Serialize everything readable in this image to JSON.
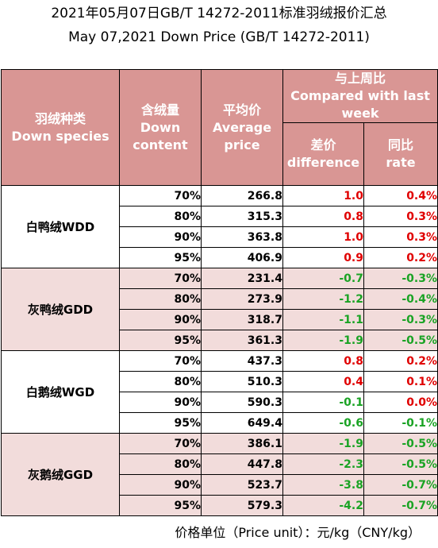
{
  "title": {
    "line1": "2021年05月07日GB/T 14272-2011标准羽绒报价汇总",
    "line2": "May 07,2021 Down Price (GB/T 14272-2011)"
  },
  "header": {
    "species_cn": "羽绒种类",
    "species_en": "Down species",
    "content_cn": "含绒量",
    "content_en": "Down content",
    "avg_cn": "平均价",
    "avg_en": "Average price",
    "compared_cn": "与上周比",
    "compared_en": "Compared with last week",
    "diff_cn": "差价",
    "diff_en": "difference",
    "rate_cn": "同比",
    "rate_en": "rate"
  },
  "groups": [
    {
      "name": "白鸭绒WDD",
      "rows": [
        {
          "content": "70%",
          "avg": "266.8",
          "diff": "1.0",
          "rate": "0.4%"
        },
        {
          "content": "80%",
          "avg": "315.3",
          "diff": "0.8",
          "rate": "0.3%"
        },
        {
          "content": "90%",
          "avg": "363.8",
          "diff": "1.0",
          "rate": "0.3%"
        },
        {
          "content": "95%",
          "avg": "406.9",
          "diff": "0.9",
          "rate": "0.2%"
        }
      ]
    },
    {
      "name": "灰鸭绒GDD",
      "rows": [
        {
          "content": "70%",
          "avg": "231.4",
          "diff": "-0.7",
          "rate": "-0.3%"
        },
        {
          "content": "80%",
          "avg": "273.9",
          "diff": "-1.2",
          "rate": "-0.4%"
        },
        {
          "content": "90%",
          "avg": "318.7",
          "diff": "-1.1",
          "rate": "-0.3%"
        },
        {
          "content": "95%",
          "avg": "361.3",
          "diff": "-1.9",
          "rate": "-0.5%"
        }
      ]
    },
    {
      "name": "白鹅绒WGD",
      "rows": [
        {
          "content": "70%",
          "avg": "437.3",
          "diff": "0.8",
          "rate": "0.2%"
        },
        {
          "content": "80%",
          "avg": "510.3",
          "diff": "0.4",
          "rate": "0.1%"
        },
        {
          "content": "90%",
          "avg": "590.3",
          "diff": "-0.1",
          "rate": "0.0%"
        },
        {
          "content": "95%",
          "avg": "649.4",
          "diff": "-0.6",
          "rate": "-0.1%"
        }
      ]
    },
    {
      "name": "灰鹅绒GGD",
      "rows": [
        {
          "content": "70%",
          "avg": "386.1",
          "diff": "-1.9",
          "rate": "-0.5%"
        },
        {
          "content": "80%",
          "avg": "447.8",
          "diff": "-2.3",
          "rate": "-0.5%"
        },
        {
          "content": "90%",
          "avg": "523.7",
          "diff": "-3.8",
          "rate": "-0.7%"
        },
        {
          "content": "95%",
          "avg": "579.3",
          "diff": "-4.2",
          "rate": "-0.7%"
        }
      ]
    }
  ],
  "footer": "价格单位（Price unit）：元/kg（CNY/kg）",
  "colors": {
    "header_bg": "#d99694",
    "band_pink": "#f2dcdb",
    "increase": "#e00000",
    "decrease": "#1aa324"
  }
}
